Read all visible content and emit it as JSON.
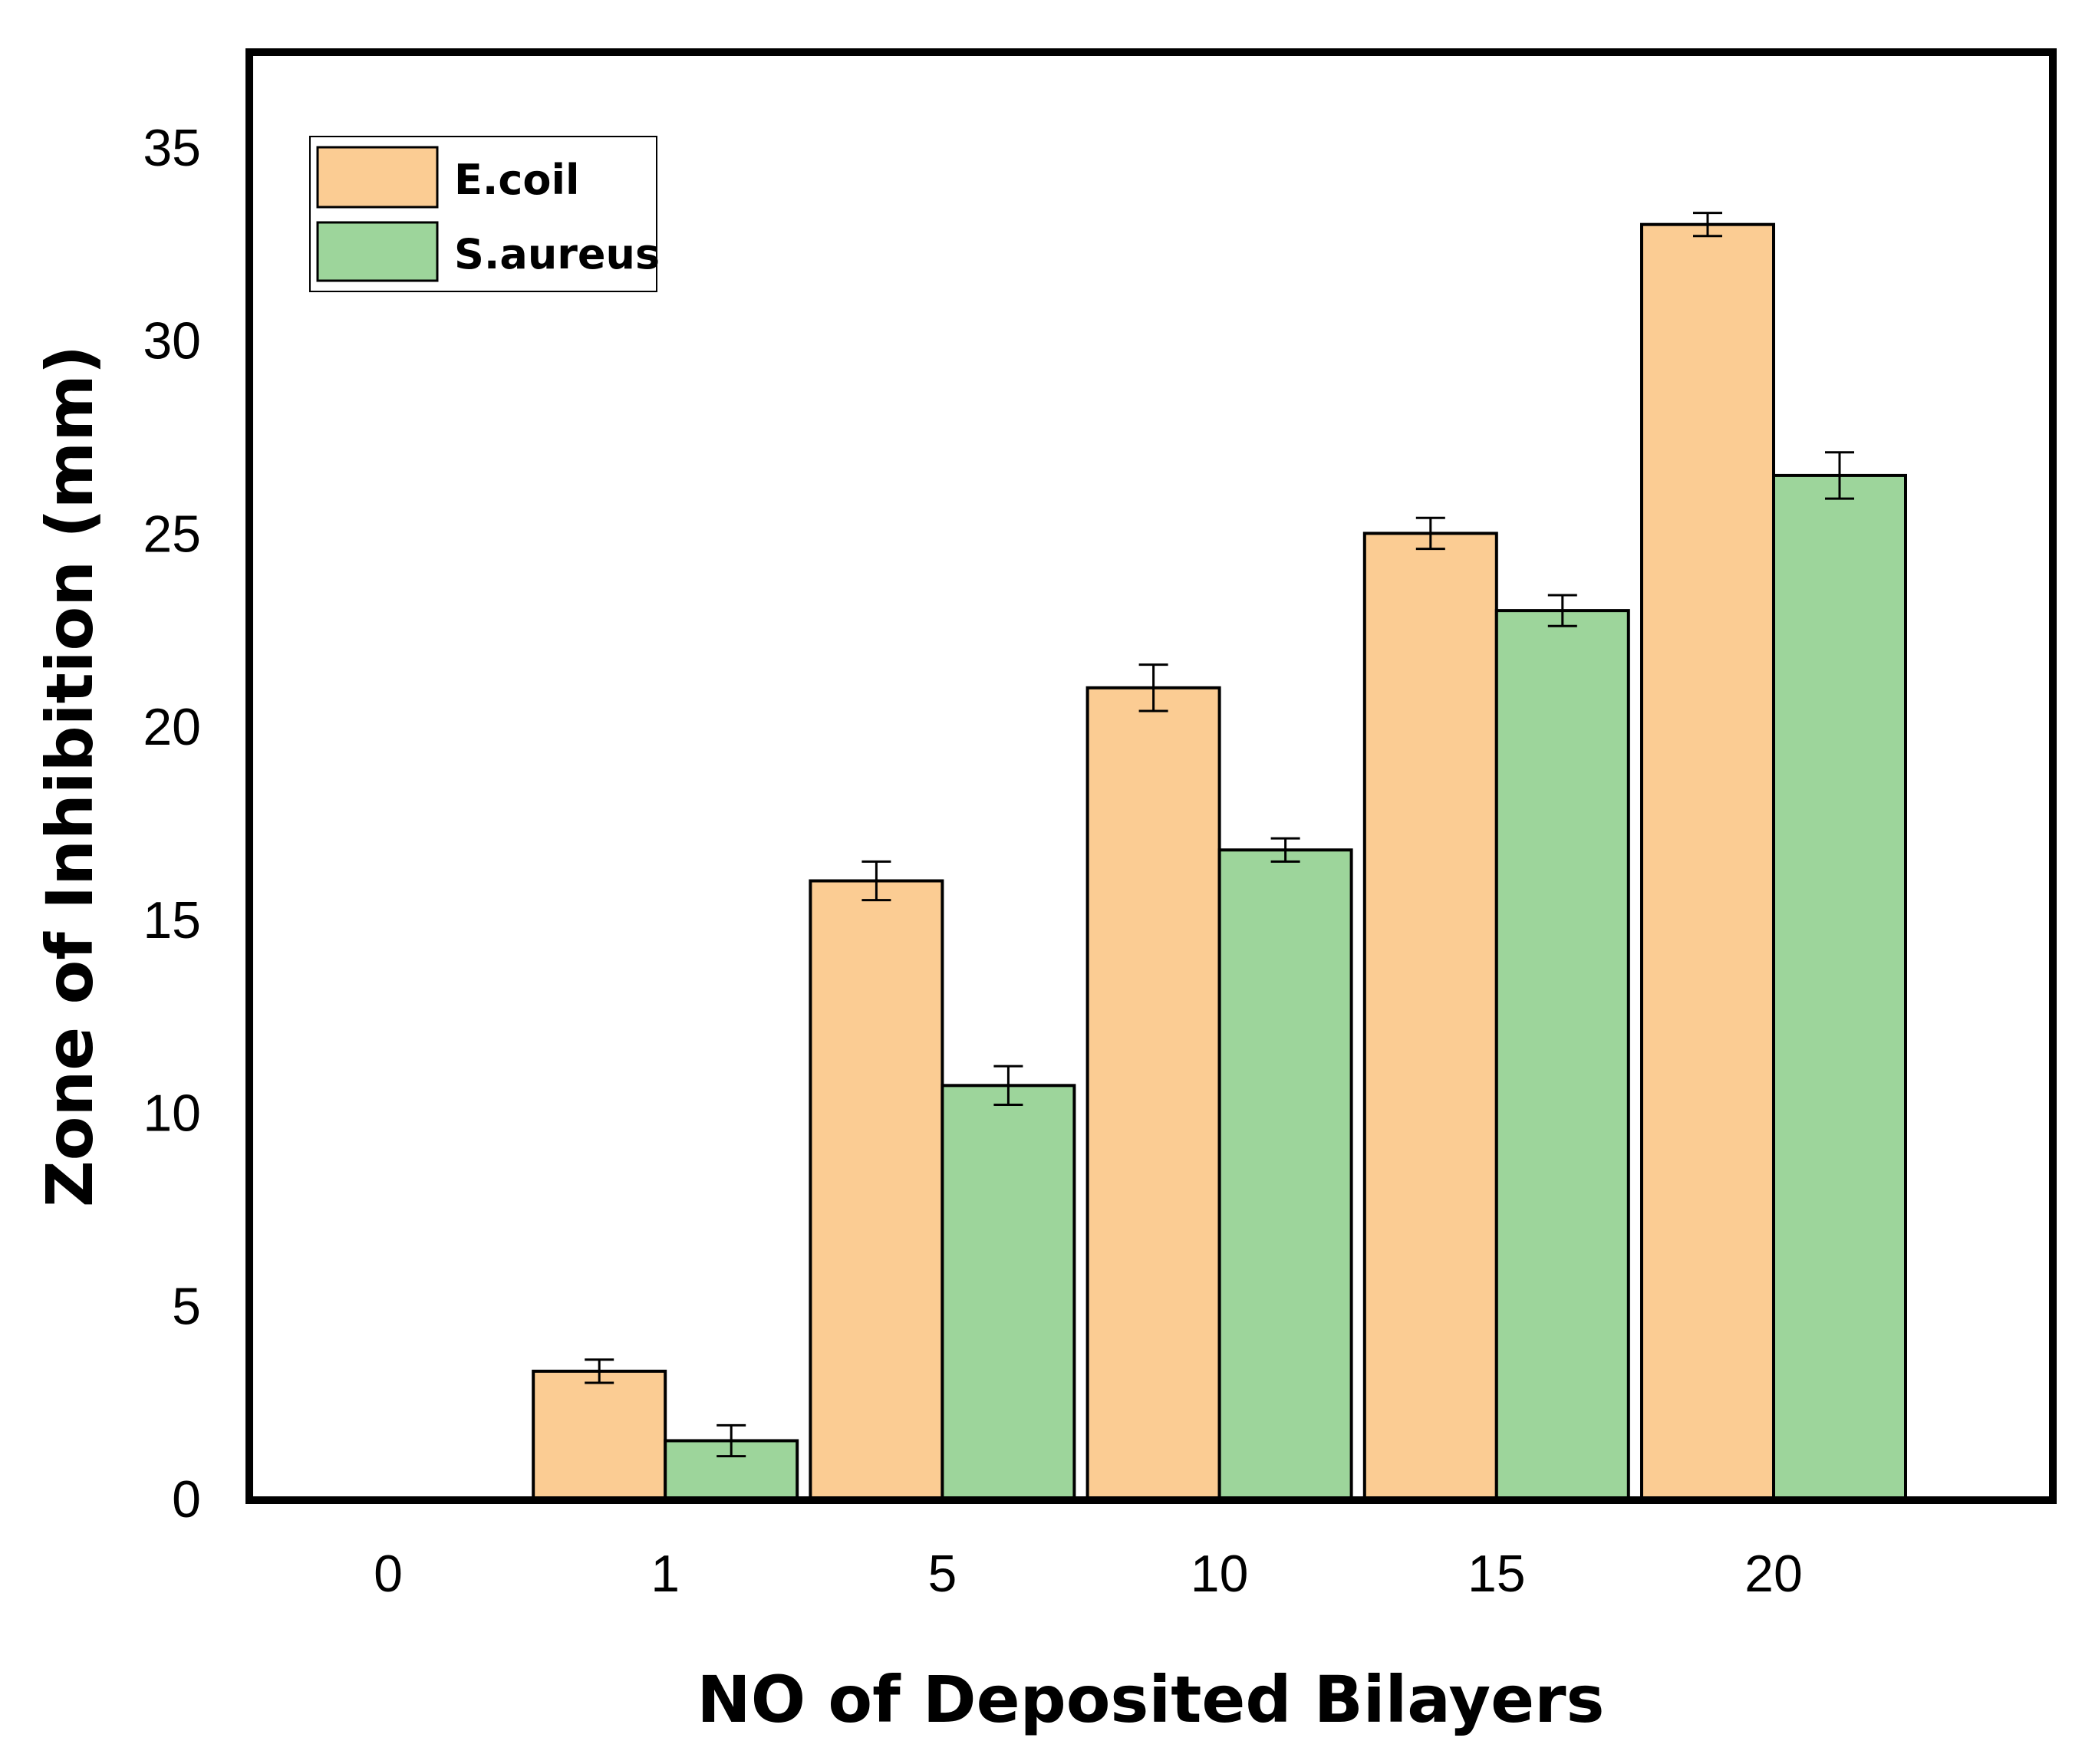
{
  "chart_data": {
    "type": "bar",
    "title": "",
    "xlabel": "NO of Deposited Bilayers",
    "ylabel": "Zone of Inhibition (mm)",
    "categories": [
      "0",
      "1",
      "5",
      "10",
      "15",
      "20"
    ],
    "ylim": [
      0,
      37.5
    ],
    "yticks": [
      0,
      5,
      10,
      15,
      20,
      25,
      30,
      35
    ],
    "grid": false,
    "legend_position": "top-left",
    "series": [
      {
        "name": "E.coil",
        "color": "#fbcc93",
        "values": [
          0,
          3.3,
          16.0,
          21.0,
          25.0,
          33.0
        ],
        "errors": [
          0,
          0.3,
          0.5,
          0.6,
          0.4,
          0.3
        ]
      },
      {
        "name": "S.aureus",
        "color": "#9dd59b",
        "values": [
          0,
          1.5,
          10.7,
          16.8,
          23.0,
          26.5
        ],
        "errors": [
          0,
          0.4,
          0.5,
          0.3,
          0.4,
          0.6
        ]
      }
    ]
  }
}
